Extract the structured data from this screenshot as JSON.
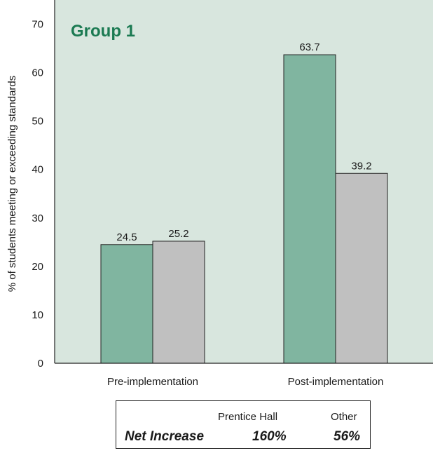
{
  "colors": {
    "plot_background": "#d8e6de",
    "prentice_hall": "#80b5a0",
    "other": "#c0c0c0",
    "title": "#1b7a52"
  },
  "chart_data": {
    "type": "bar",
    "title": "Group 1",
    "ylabel": "% of students meeting or exceeding standards",
    "xlabel": "",
    "categories": [
      "Pre-implementation",
      "Post-implementation"
    ],
    "series": [
      {
        "name": "Prentice Hall",
        "values": [
          24.5,
          63.7
        ],
        "color": "#80b5a0"
      },
      {
        "name": "Other",
        "values": [
          25.2,
          39.2
        ],
        "color": "#c0c0c0"
      }
    ],
    "ylim": [
      0,
      75
    ],
    "yticks": [
      0,
      10,
      20,
      30,
      40,
      50,
      60,
      70
    ],
    "grid": false
  },
  "net_table": {
    "row_label": "Net Increase",
    "col1_header": "Prentice Hall",
    "col2_header": "Other",
    "col1_value": "160%",
    "col2_value": "56%"
  }
}
